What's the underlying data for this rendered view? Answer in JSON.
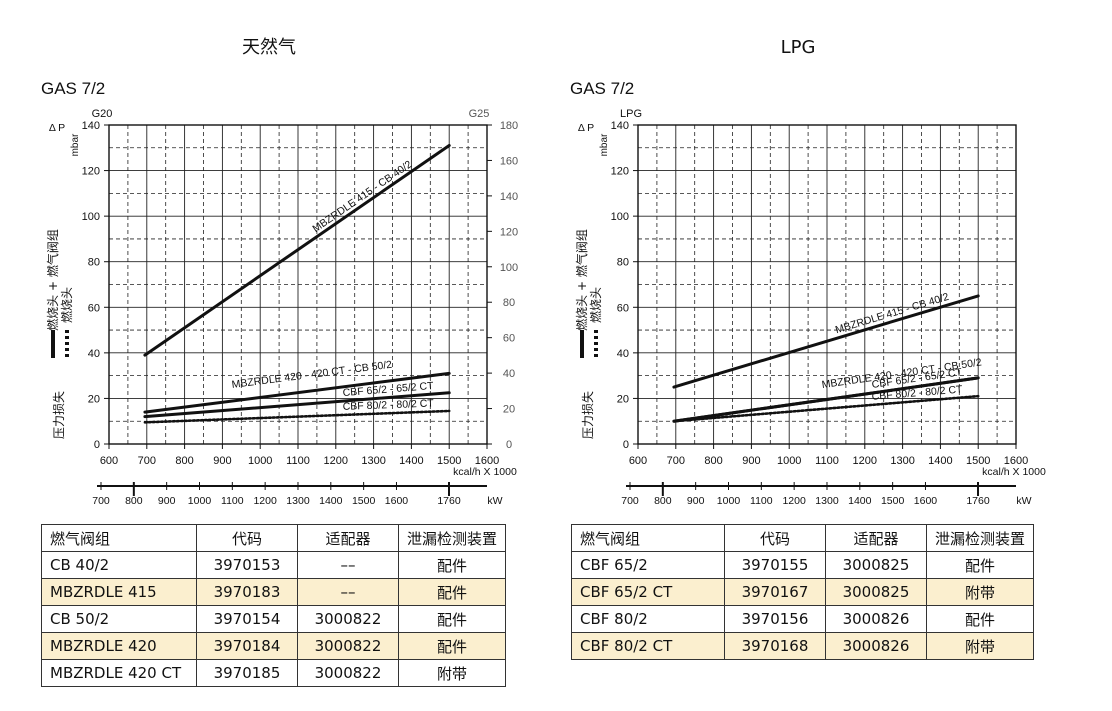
{
  "charts": [
    {
      "heading": "天然气",
      "subtitle": "GAS 7/2",
      "left_axis_label": "G20",
      "right_axis_label": "G25",
      "delta_p": "Δ P",
      "unit": "mbar",
      "legend_solid": "燃烧头 + 燃气阀组",
      "legend_dotted": "燃烧头",
      "legend_title": "压力损失",
      "x_unit": "kcal/h X 1000",
      "kw_unit": "kW"
    },
    {
      "heading": "LPG",
      "subtitle": "GAS 7/2",
      "left_axis_label": "LPG",
      "delta_p": "Δ P",
      "unit": "mbar",
      "legend_solid": "燃烧头 + 燃气阀组",
      "legend_dotted": "燃烧头",
      "legend_title": "压力损失",
      "x_unit": "kcal/h X 1000",
      "kw_unit": "kW"
    }
  ],
  "chart_data": [
    {
      "type": "line",
      "xlim": [
        600,
        1600
      ],
      "ylim": [
        0,
        140
      ],
      "y2lim": [
        0,
        180
      ],
      "x_ticks": [
        "600",
        "700",
        "800",
        "900",
        "1000",
        "1100",
        "1200",
        "1300",
        "1400",
        "1500",
        "1600"
      ],
      "y_ticks": [
        "0",
        "20",
        "40",
        "60",
        "80",
        "100",
        "120",
        "140"
      ],
      "y2_ticks": [
        "0",
        "20",
        "40",
        "60",
        "80",
        "100",
        "120",
        "140",
        "160",
        "180"
      ],
      "kw_ticks": [
        "700",
        "800",
        "900",
        "1000",
        "1100",
        "1200",
        "1300",
        "1400",
        "1500",
        "1600",
        "1760"
      ],
      "series": [
        {
          "name": "MBZRDLE 415 - CB 40/2",
          "style": "solid",
          "x": [
            695,
            1500
          ],
          "y": [
            39,
            131
          ]
        },
        {
          "name": "MBZRDLE 420 - 420 CT - CB 50/2",
          "style": "solid",
          "x": [
            695,
            1500
          ],
          "y": [
            14,
            31
          ]
        },
        {
          "name": "CBF 65/2 - 65/2 CT",
          "style": "solid",
          "x": [
            695,
            1500
          ],
          "y": [
            12,
            22.5
          ]
        },
        {
          "name": "CBF 80/2 - 80/2 CT",
          "style": "dotted",
          "x": [
            695,
            1500
          ],
          "y": [
            9.5,
            14.5
          ]
        }
      ]
    },
    {
      "type": "line",
      "xlim": [
        600,
        1600
      ],
      "ylim": [
        0,
        140
      ],
      "x_ticks": [
        "600",
        "700",
        "800",
        "900",
        "1000",
        "1100",
        "1200",
        "1300",
        "1400",
        "1500",
        "1600"
      ],
      "y_ticks": [
        "0",
        "20",
        "40",
        "60",
        "80",
        "100",
        "120",
        "140"
      ],
      "kw_ticks": [
        "700",
        "800",
        "900",
        "1000",
        "1100",
        "1200",
        "1300",
        "1400",
        "1500",
        "1600",
        "1760"
      ],
      "series": [
        {
          "name": "MBZRDLE 415 - CB 40/2",
          "style": "solid",
          "x": [
            695,
            1500
          ],
          "y": [
            25,
            65
          ]
        },
        {
          "name": "MBZRDLE 420 - 420 CT - CB 50/2",
          "style": "solid",
          "x": [
            695,
            1500
          ],
          "y": [
            10,
            29
          ]
        },
        {
          "name": "CBF 65/2 - 65/2 CT",
          "style": "solid",
          "x": [
            695,
            1500
          ],
          "y": [
            10,
            29
          ]
        },
        {
          "name": "CBF 80/2 - 80/2 CT",
          "style": "dotted",
          "x": [
            695,
            1500
          ],
          "y": [
            10,
            21
          ]
        }
      ]
    }
  ],
  "tables": [
    {
      "headers": [
        "燃气阀组",
        "代码",
        "适配器",
        "泄漏检测装置"
      ],
      "rows": [
        {
          "cells": [
            "CB 40/2",
            "3970153",
            "––",
            "配件"
          ],
          "highlight": false
        },
        {
          "cells": [
            "MBZRDLE 415",
            "3970183",
            "––",
            "配件"
          ],
          "highlight": true
        },
        {
          "cells": [
            "CB 50/2",
            "3970154",
            "3000822",
            "配件"
          ],
          "highlight": false
        },
        {
          "cells": [
            "MBZRDLE 420",
            "3970184",
            "3000822",
            "配件"
          ],
          "highlight": true
        },
        {
          "cells": [
            "MBZRDLE 420 CT",
            "3970185",
            "3000822",
            "附带"
          ],
          "highlight": false
        }
      ]
    },
    {
      "headers": [
        "燃气阀组",
        "代码",
        "适配器",
        "泄漏检测装置"
      ],
      "rows": [
        {
          "cells": [
            "CBF 65/2",
            "3970155",
            "3000825",
            "配件"
          ],
          "highlight": false
        },
        {
          "cells": [
            "CBF 65/2 CT",
            "3970167",
            "3000825",
            "附带"
          ],
          "highlight": true
        },
        {
          "cells": [
            "CBF 80/2",
            "3970156",
            "3000826",
            "配件"
          ],
          "highlight": false
        },
        {
          "cells": [
            "CBF 80/2 CT",
            "3970168",
            "3000826",
            "附带"
          ],
          "highlight": true
        }
      ]
    }
  ]
}
